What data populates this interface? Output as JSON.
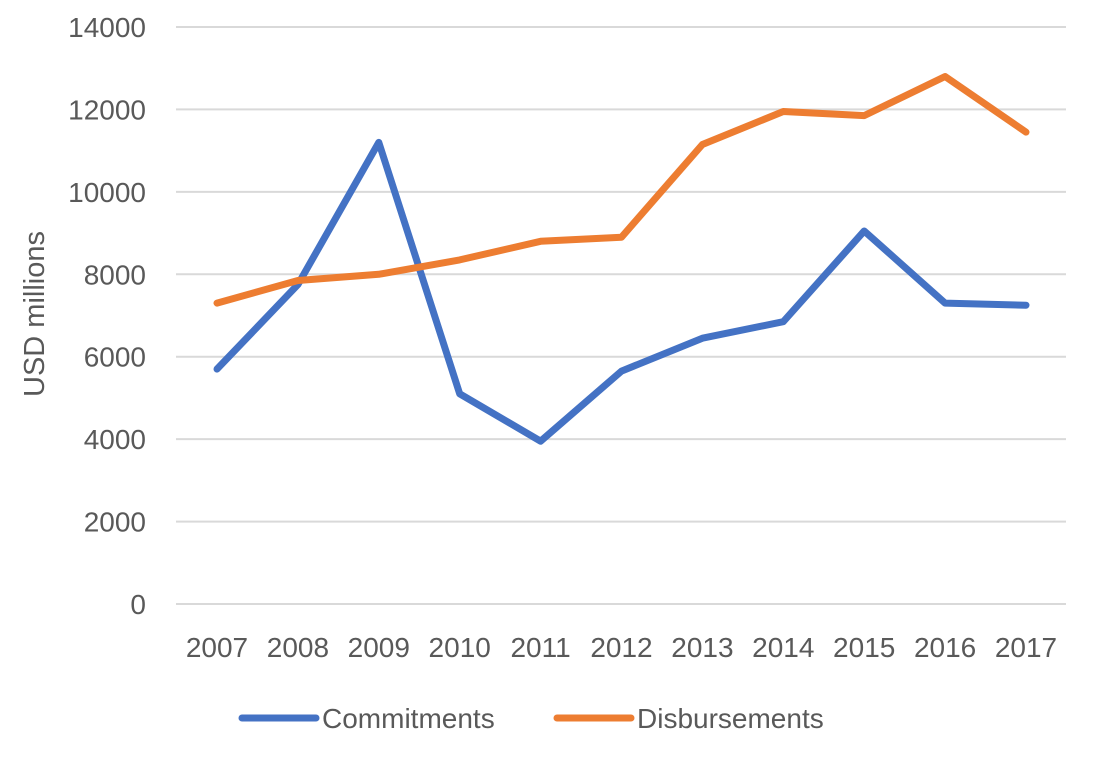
{
  "chart_data": {
    "type": "line",
    "title": "",
    "xlabel": "",
    "ylabel": "USD millions",
    "categories": [
      "2007",
      "2008",
      "2009",
      "2010",
      "2011",
      "2012",
      "2013",
      "2014",
      "2015",
      "2016",
      "2017"
    ],
    "ylim": [
      0,
      14000
    ],
    "yticks": [
      0,
      2000,
      4000,
      6000,
      8000,
      10000,
      12000,
      14000
    ],
    "grid": true,
    "legend_position": "bottom",
    "series": [
      {
        "name": "Commitments",
        "color": "#4472C4",
        "values": [
          5700,
          7750,
          11200,
          5100,
          3950,
          5650,
          6450,
          6850,
          9050,
          7300,
          7250
        ]
      },
      {
        "name": "Disbursements",
        "color": "#ED7D31",
        "values": [
          7300,
          7850,
          8000,
          8350,
          8800,
          8900,
          11150,
          11950,
          11850,
          12800,
          11450
        ]
      }
    ]
  }
}
